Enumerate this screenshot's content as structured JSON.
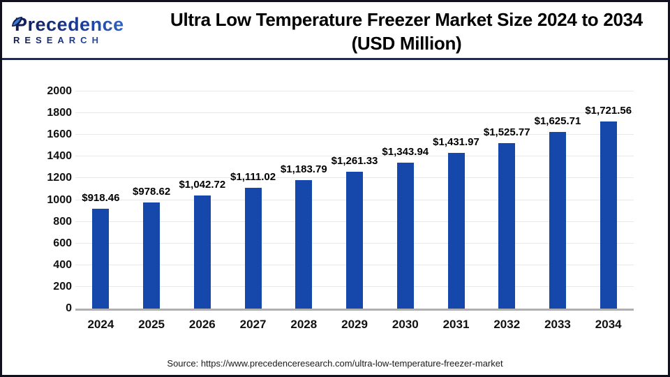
{
  "header": {
    "logo_line1": "Precedence",
    "logo_line2": "RESEARCH",
    "title_line1": "Ultra Low Temperature Freezer Market Size 2024 to 2034",
    "title_line2": "(USD Million)"
  },
  "footer": {
    "source": "Source: https://www.precedenceresearch.com/ultra-low-temperature-freezer-market"
  },
  "colors": {
    "bar": "#1648ac",
    "gridline": "#e8e8e8",
    "axis_line": "#b0b0b3",
    "header_separator": "#1b2a5e",
    "logo_navy": "#121c4e",
    "logo_blue": "#3a7ad0",
    "title_text": "#000000"
  },
  "chart_data": {
    "type": "bar",
    "title": "Ultra Low Temperature Freezer Market Size 2024 to 2034 (USD Million)",
    "categories": [
      "2024",
      "2025",
      "2026",
      "2027",
      "2028",
      "2029",
      "2030",
      "2031",
      "2032",
      "2033",
      "2034"
    ],
    "values": [
      918.46,
      978.62,
      1042.72,
      1111.02,
      1183.79,
      1261.33,
      1343.94,
      1431.97,
      1525.77,
      1625.71,
      1721.56
    ],
    "value_labels": [
      "$918.46",
      "$978.62",
      "$1,042.72",
      "$1,111.02",
      "$1,183.79",
      "$1,261.33",
      "$1,343.94",
      "$1,431.97",
      "$1,525.77",
      "$1,625.71",
      "$1,721.56"
    ],
    "xlabel": "",
    "ylabel": "",
    "ylim": [
      0,
      2000
    ],
    "yticks": [
      0,
      200,
      400,
      600,
      800,
      1000,
      1200,
      1400,
      1600,
      1800,
      2000
    ],
    "grid": "horizontal",
    "legend": "none"
  }
}
